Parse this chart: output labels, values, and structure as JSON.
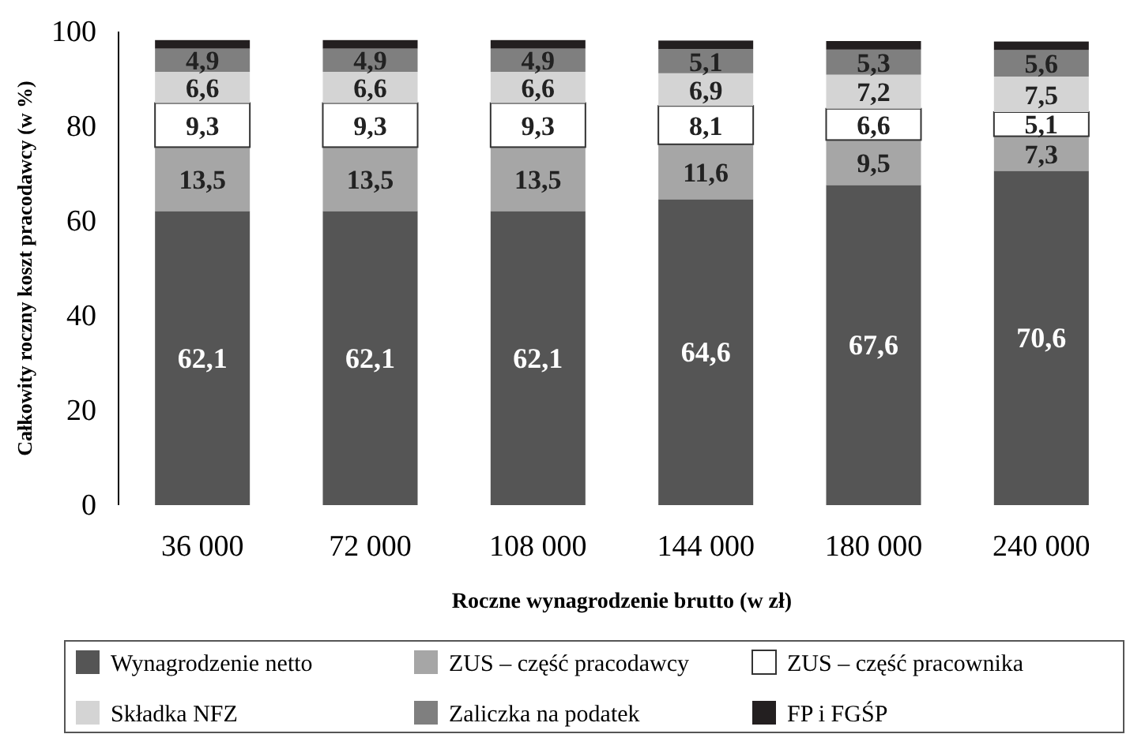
{
  "chart_data": {
    "type": "bar",
    "stacked": true,
    "xlabel": "Roczne wynagrodzenie brutto  (w zł)",
    "ylabel": "Całkowity roczny koszt pracodawcy (w %)",
    "categories": [
      "36 000",
      "72 000",
      "108 000",
      "144 000",
      "180 000",
      "240 000"
    ],
    "ylim": [
      0,
      100
    ],
    "yticks": [
      0,
      20,
      40,
      60,
      80,
      100
    ],
    "grid": false,
    "legend": "bottom",
    "series": [
      {
        "name": "Wynagrodzenie netto",
        "color": "#555555",
        "values": [
          62.1,
          62.1,
          62.1,
          64.6,
          67.6,
          70.6
        ],
        "value_labels": [
          "62,1",
          "62,1",
          "62,1",
          "64,6",
          "67,6",
          "70,6"
        ]
      },
      {
        "name": "ZUS – część pracodawcy",
        "color": "#a6a6a6",
        "values": [
          13.5,
          13.5,
          13.5,
          11.6,
          9.5,
          7.3
        ],
        "value_labels": [
          "13,5",
          "13,5",
          "13,5",
          "11,6",
          "9,5",
          "7,3"
        ]
      },
      {
        "name": "ZUS – część pracownika",
        "color": "#ffffff",
        "values": [
          9.3,
          9.3,
          9.3,
          8.1,
          6.6,
          5.1
        ],
        "value_labels": [
          "9,3",
          "9,3",
          "9,3",
          "8,1",
          "6,6",
          "5,1"
        ]
      },
      {
        "name": "Składka NFZ",
        "color": "#d4d4d4",
        "values": [
          6.6,
          6.6,
          6.6,
          6.9,
          7.2,
          7.5
        ],
        "value_labels": [
          "6,6",
          "6,6",
          "6,6",
          "6,9",
          "7,2",
          "7,5"
        ]
      },
      {
        "name": "Zaliczka na podatek",
        "color": "#7f7f7f",
        "values": [
          4.9,
          4.9,
          4.9,
          5.1,
          5.3,
          5.6
        ],
        "value_labels": [
          "4,9",
          "4,9",
          "4,9",
          "5,1",
          "5,3",
          "5,6"
        ]
      },
      {
        "name": "FP i FGŚP",
        "color": "#231f20",
        "values": [
          1.8,
          1.8,
          1.8,
          1.8,
          1.8,
          1.8
        ]
      }
    ]
  }
}
